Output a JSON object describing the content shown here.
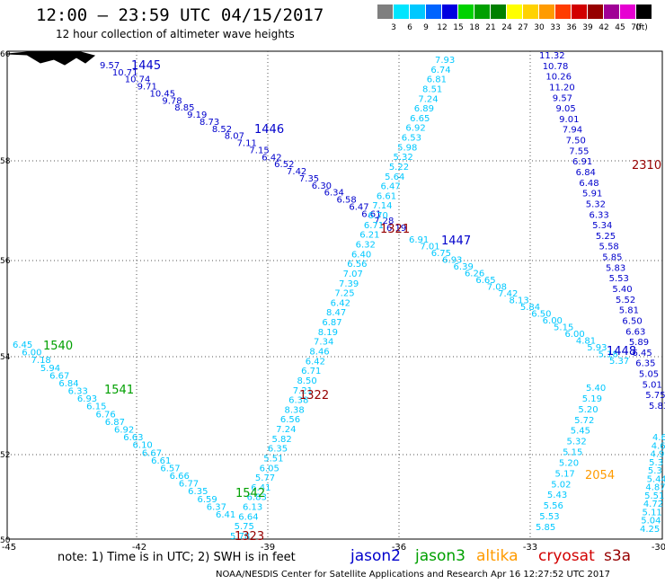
{
  "header": {
    "time_title": "12:00 – 23:59 UTC 04/15/2017",
    "subtitle": "12 hour collection of altimeter wave heights"
  },
  "colorbar": {
    "unit": "(ft)",
    "levels": [
      "3",
      "6",
      "9",
      "12",
      "15",
      "18",
      "21",
      "24",
      "27",
      "30",
      "33",
      "36",
      "39",
      "42",
      "45",
      "70"
    ],
    "colors": [
      "#7f7f7f",
      "#00e5ff",
      "#00c8ff",
      "#0064ff",
      "#0000e0",
      "#00d200",
      "#00a000",
      "#008000",
      "#ffff00",
      "#ffd200",
      "#ff9b00",
      "#ff3c00",
      "#d20000",
      "#960000",
      "#a00096",
      "#e600d2",
      "#000000"
    ]
  },
  "axes": {
    "lon_labels": [
      "-45",
      "-42",
      "-39",
      "-36",
      "-33",
      "-30"
    ],
    "lat_labels": [
      "60",
      "58",
      "56",
      "54",
      "52",
      "50"
    ]
  },
  "tracks": [
    {
      "id": "t1445",
      "color": "#0000cc",
      "label": "1445",
      "values": [
        "9.57",
        "10.71",
        "10.74",
        "9.71",
        "10.45",
        "9.78",
        "8.85",
        "9.19",
        "8.73",
        "8.52",
        "8.07",
        "7.11",
        "7.15",
        "6.42",
        "6.52",
        "7.42",
        "7.35",
        "6.30",
        "6.34",
        "6.58",
        "6.47",
        "6.61",
        "7.28",
        "6.19"
      ]
    },
    {
      "id": "t1447",
      "color": "#0000cc",
      "label": "1447",
      "values": [
        "6.91",
        "7.01",
        "6.75",
        "6.93",
        "6.39",
        "6.26",
        "6.65",
        "7.08",
        "7.42",
        "8.13",
        "5.84",
        "6.50",
        "6.00",
        "5.15",
        "6.00",
        "4.81",
        "5.93",
        "5.18",
        "5.37"
      ]
    },
    {
      "id": "t1446",
      "color": "#0000cc",
      "label": "1446",
      "values": [
        "7.93",
        "6.74",
        "6.81",
        "8.51",
        "7.24",
        "6.89",
        "6.65",
        "6.92",
        "6.53",
        "5.98",
        "5.32",
        "5.22",
        "5.64",
        "6.47",
        "6.61",
        "7.14",
        "6.70",
        "6.71",
        "6.21",
        "6.32",
        "6.40",
        "6.56",
        "7.07",
        "7.39",
        "7.25",
        "6.42",
        "8.47",
        "6.87",
        "8.19",
        "7.34",
        "8.46",
        "6.42",
        "6.71",
        "8.50",
        "7.21",
        "6.38",
        "8.38",
        "6.56",
        "7.24",
        "5.82",
        "6.35",
        "5.51",
        "6.05",
        "5.77",
        "6.41",
        "6.83",
        "6.13",
        "6.64",
        "5.75",
        "5.78"
      ]
    },
    {
      "id": "t1448",
      "color": "#0000cc",
      "label": "1448",
      "values": [
        "11.32",
        "10.78",
        "10.26",
        "11.20",
        "9.57",
        "9.05",
        "9.01",
        "7.94",
        "7.50",
        "7.55",
        "6.91",
        "6.84",
        "6.48",
        "5.91",
        "5.32",
        "6.33",
        "5.34",
        "5.25",
        "5.58",
        "5.85",
        "5.83",
        "5.53",
        "5.40",
        "5.52",
        "5.81",
        "6.50",
        "6.63",
        "5.89",
        "6.45",
        "6.35",
        "5.05",
        "5.01",
        "5.75",
        "5.83"
      ]
    },
    {
      "id": "t1448b",
      "color": "#0000cc",
      "label": "",
      "values": [
        "5.40",
        "5.19",
        "5.20",
        "5.72",
        "5.45",
        "5.32",
        "5.15",
        "5.20",
        "5.17",
        "5.02",
        "5.43",
        "5.56",
        "5.53",
        "5.85"
      ]
    },
    {
      "id": "t1540",
      "color": "#00a000",
      "label": "1540",
      "values": [
        "6.45",
        "6.00",
        "7.18",
        "5.94",
        "6.67",
        "6.84",
        "6.33",
        "6.93",
        "6.15",
        "6.76",
        "6.87",
        "6.92",
        "6.63",
        "6.10",
        "6.67",
        "6.61",
        "6.57",
        "6.66",
        "6.77",
        "6.35",
        "6.59",
        "6.37",
        "6.41"
      ]
    },
    {
      "id": "t1541",
      "color": "#00a000",
      "label": "1541",
      "values": []
    },
    {
      "id": "t1542",
      "color": "#00a000",
      "label": "1542",
      "values": []
    },
    {
      "id": "tright",
      "color": "#00c8ff",
      "label": "",
      "values": [
        "4.6",
        "4.6",
        "4.9",
        "5.3",
        "5.3",
        "5.44",
        "4.87",
        "5.51",
        "4.72",
        "5.11",
        "5.04",
        "4.25"
      ]
    },
    {
      "id": "t1321",
      "color": "#960000",
      "label": "1321",
      "values": []
    },
    {
      "id": "t1322",
      "color": "#960000",
      "label": "1322",
      "values": []
    },
    {
      "id": "t1323",
      "color": "#960000",
      "label": "1323",
      "values": []
    },
    {
      "id": "t2310",
      "color": "#960000",
      "label": "2310",
      "values": []
    },
    {
      "id": "t2054",
      "color": "#ff9b00",
      "label": "2054",
      "values": []
    }
  ],
  "note": "note:  1) Time is in UTC;  2) SWH is in feet",
  "legend": [
    {
      "name": "jason2",
      "color": "#0000cc"
    },
    {
      "name": "jason3",
      "color": "#00a000"
    },
    {
      "name": "altika",
      "color": "#ff9b00"
    },
    {
      "name": "cryosat",
      "color": "#d20000"
    },
    {
      "name": "s3a",
      "color": "#960000"
    }
  ],
  "footer": "NOAA/NESDIS Center for Satellite Applications and Research     Apr 16 12:27:52 UTC 2017"
}
